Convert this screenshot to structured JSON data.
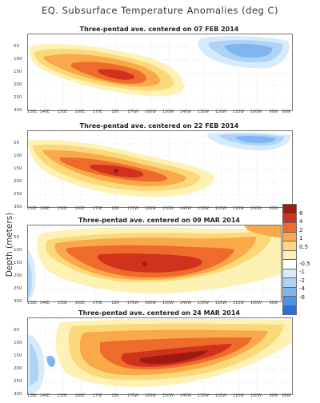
{
  "title": "EQ. Subsurface Temperature Anomalies (deg C)",
  "ylabel": "Depth (meters)",
  "colors": {
    "neg_6": "#2a6fd6",
    "neg_4": "#4b92e8",
    "neg_2": "#7fb6f2",
    "neg_1": "#aed3f7",
    "neg_05": "#d6ebfb",
    "zero": "#ffffff",
    "pos_05": "#fdf2b3",
    "pos_1": "#fbd97a",
    "pos_2": "#f9a94a",
    "pos_4": "#ef6b2c",
    "pos_6": "#d1321d",
    "pos_max": "#a01a12"
  },
  "chart_data": [
    {
      "type": "heatmap",
      "title": "Three-pentad ave. centered on 07 FEB 2014",
      "xticks": [
        "130E",
        "140E",
        "150E",
        "160E",
        "170E",
        "180",
        "170W",
        "160W",
        "150W",
        "140W",
        "130W",
        "120W",
        "110W",
        "100W",
        "90W",
        "80W"
      ],
      "yticks": [
        "50",
        "100",
        "150",
        "200",
        "250",
        "300"
      ],
      "ylim": [
        300,
        0
      ],
      "features": [
        {
          "sign": "positive",
          "lon_range": [
            "135E",
            "150W"
          ],
          "depth_range": [
            20,
            180
          ],
          "peak": 5,
          "peak_at": [
            "170W",
            100
          ]
        },
        {
          "sign": "negative",
          "lon_range": [
            "130W",
            "85W"
          ],
          "depth_range": [
            0,
            100
          ],
          "peak": -3,
          "peak_at": [
            "110W",
            40
          ]
        }
      ]
    },
    {
      "type": "heatmap",
      "title": "Three-pentad ave. centered on 22 FEB 2014",
      "xticks": [
        "130E",
        "140E",
        "150E",
        "160E",
        "170E",
        "180",
        "170W",
        "160W",
        "150W",
        "140W",
        "130W",
        "120W",
        "110W",
        "100W",
        "90W",
        "80W"
      ],
      "yticks": [
        "50",
        "100",
        "150",
        "200",
        "250",
        "300"
      ],
      "ylim": [
        300,
        0
      ],
      "features": [
        {
          "sign": "positive",
          "lon_range": [
            "135E",
            "140W"
          ],
          "depth_range": [
            20,
            200
          ],
          "peak": 6,
          "peak_at": [
            "170W",
            130
          ]
        },
        {
          "sign": "negative",
          "lon_range": [
            "125W",
            "85W"
          ],
          "depth_range": [
            0,
            60
          ],
          "peak": -2,
          "peak_at": [
            "105W",
            20
          ]
        }
      ]
    },
    {
      "type": "heatmap",
      "title": "Three-pentad ave. centered on 09 MAR 2014",
      "xticks": [
        "130E",
        "140E",
        "150E",
        "160E",
        "170E",
        "180",
        "170W",
        "160W",
        "150W",
        "140W",
        "130W",
        "120W",
        "110W",
        "100W",
        "90W",
        "80W"
      ],
      "yticks": [
        "50",
        "100",
        "150",
        "200",
        "250",
        "300"
      ],
      "ylim": [
        300,
        0
      ],
      "features": [
        {
          "sign": "positive",
          "lon_range": [
            "140E",
            "90W"
          ],
          "depth_range": [
            20,
            230
          ],
          "peak": 6,
          "peak_at": [
            "175W",
            150
          ]
        },
        {
          "sign": "negative",
          "lon_range": [
            "130E",
            "145E"
          ],
          "depth_range": [
            60,
            300
          ],
          "peak": -2,
          "peak_at": [
            "135E",
            200
          ]
        }
      ]
    },
    {
      "type": "heatmap",
      "title": "Three-pentad ave. centered on 24 MAR 2014",
      "xticks": [
        "130E",
        "140E",
        "150E",
        "160E",
        "170E",
        "180",
        "170W",
        "160W",
        "150W",
        "140W",
        "130W",
        "120W",
        "110W",
        "100W",
        "90W",
        "80W"
      ],
      "yticks": [
        "50",
        "100",
        "150",
        "200",
        "250",
        "300"
      ],
      "ylim": [
        300,
        0
      ],
      "features": [
        {
          "sign": "positive",
          "lon_range": [
            "150E",
            "85W"
          ],
          "depth_range": [
            10,
            230
          ],
          "peak": 6,
          "peak_at": [
            "170W",
            150
          ]
        },
        {
          "sign": "negative",
          "lon_range": [
            "130E",
            "150E"
          ],
          "depth_range": [
            80,
            300
          ],
          "peak": -2,
          "peak_at": [
            "140E",
            200
          ]
        }
      ]
    }
  ],
  "colorbar": {
    "labels": [
      "6",
      "4",
      "2",
      "1",
      "0.5",
      "-0.5",
      "-1",
      "-2",
      "-4",
      "-6"
    ]
  }
}
